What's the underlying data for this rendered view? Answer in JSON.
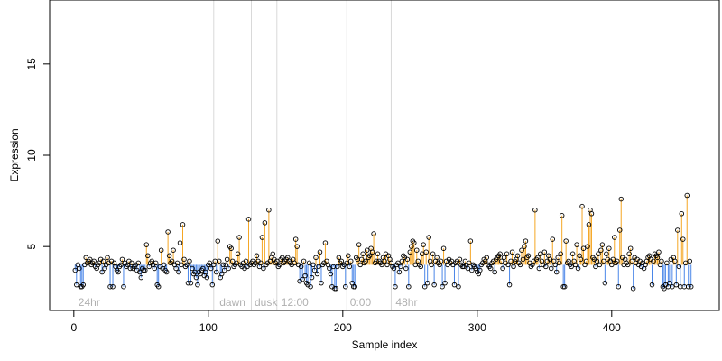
{
  "chart_data": {
    "type": "scatter",
    "title": "",
    "xlabel": "Sample index",
    "ylabel": "Expression",
    "xlim": [
      -18,
      480
    ],
    "ylim": [
      1.5,
      18.5
    ],
    "x_ticks": [
      0,
      100,
      200,
      300,
      400
    ],
    "y_ticks": [
      5,
      10,
      15
    ],
    "baseline": 4.0,
    "grid": false,
    "legend": "none",
    "colors": {
      "above": "#f5a623",
      "below": "#4a86e8",
      "point_edge": "#000000",
      "separator": "#d9d9d9",
      "condition_label": "#b0b0b0"
    },
    "condition_boundaries": [
      104,
      132,
      151,
      203,
      236
    ],
    "condition_labels": [
      {
        "text": "24hr",
        "x": 2
      },
      {
        "text": "dawn",
        "x": 107
      },
      {
        "text": "dusk",
        "x": 133
      },
      {
        "text": "12:00",
        "x": 153
      },
      {
        "text": "0:00",
        "x": 204
      },
      {
        "text": "48hr",
        "x": 238
      }
    ],
    "series": [
      {
        "x_start": 1,
        "values": [
          3.7,
          2.9,
          4.0,
          3.8,
          2.8,
          2.8,
          2.9,
          4.0,
          4.4,
          4.1,
          4.2,
          4.3,
          4.0,
          4.1,
          4.2,
          3.9,
          3.8,
          4.0,
          4.1,
          4.3,
          3.6,
          4.2,
          3.8,
          4.0,
          4.4,
          4.1,
          2.8,
          4.2,
          2.8,
          4.1,
          3.9,
          3.7,
          3.6,
          3.9,
          4.0,
          4.3,
          2.8,
          4.1,
          3.9,
          4.0,
          4.2,
          3.8,
          4.1,
          3.8,
          3.9,
          4.0,
          3.7,
          4.1,
          3.6,
          3.3,
          3.8,
          3.7,
          3.7,
          5.1,
          4.5,
          3.9,
          4.1,
          4.2,
          4.0,
          3.8,
          4.1,
          2.9,
          2.8,
          3.9,
          4.8,
          3.8,
          4.0,
          3.7,
          3.6,
          5.8,
          4.5,
          4.1,
          4.2,
          4.8,
          4.0,
          3.8,
          4.1,
          3.6,
          5.2,
          4.0,
          6.2,
          4.3,
          3.9,
          4.0,
          3.0,
          4.2,
          3.0,
          3.8,
          3.5,
          3.6,
          3.3,
          2.9,
          3.6,
          3.5,
          3.7,
          3.8,
          3.4,
          3.6,
          3.3,
          4.0,
          4.1,
          3.8,
          2.9,
          4.0,
          4.2,
          3.6,
          5.3,
          4.2,
          3.3,
          3.5,
          4.0,
          3.7,
          4.0,
          4.3,
          3.8,
          5.0,
          4.9,
          4.2,
          3.9,
          4.0,
          4.1,
          4.6,
          5.5,
          4.0,
          3.9,
          4.1,
          3.8,
          4.2,
          3.9,
          6.5,
          4.0,
          4.1,
          4.2,
          4.0,
          4.1,
          4.5,
          4.2,
          3.9,
          4.1,
          5.5,
          3.8,
          6.3,
          4.0,
          4.1,
          7.0,
          4.2,
          4.4,
          4.6,
          4.3,
          4.1,
          4.2,
          3.9,
          4.0,
          4.3,
          4.4,
          4.1,
          4.2,
          4.3,
          4.4,
          4.2,
          4.1,
          4.0,
          4.3,
          4.1,
          5.4,
          5.0,
          4.0,
          3.1,
          3.9,
          3.2,
          4.2,
          3.4,
          3.0,
          2.9,
          4.1,
          2.8,
          3.3,
          4.0,
          3.7,
          4.4,
          3.5,
          3.9,
          4.7,
          3.0,
          4.0,
          4.1,
          5.2,
          4.2,
          4.0,
          3.8,
          3.5,
          2.8,
          3.9,
          2.7,
          2.7,
          3.9,
          4.4,
          4.1,
          4.2,
          3.9,
          4.0,
          2.8,
          4.1,
          4.5,
          3.9,
          4.2,
          3.0,
          2.8,
          2.8,
          4.4,
          4.3,
          5.1,
          4.0,
          4.3,
          4.6,
          4.1,
          4.2,
          4.8,
          4.4,
          4.5,
          4.9,
          4.7,
          5.7,
          4.1,
          4.2,
          4.6,
          4.2,
          4.1,
          4.0,
          4.4,
          4.2,
          4.6,
          4.0,
          4.5,
          4.3,
          4.1,
          3.9,
          3.8,
          2.8,
          4.0,
          4.1,
          3.6,
          3.9,
          4.2,
          4.5,
          4.4,
          3.8,
          4.3,
          2.8,
          4.7,
          5.0,
          5.3,
          5.2,
          4.0,
          4.8,
          4.2,
          4.0,
          3.9,
          4.6,
          5.1,
          2.8,
          4.7,
          3.0,
          5.5,
          4.2,
          4.0,
          4.6,
          2.9,
          4.2,
          4.4,
          4.1,
          4.0,
          4.2,
          2.8,
          4.9,
          3.0,
          4.2,
          4.0,
          4.3,
          4.1,
          4.2,
          4.0,
          2.9,
          4.1,
          4.2,
          2.8,
          4.3,
          4.0,
          3.9,
          3.9,
          4.2,
          4.0,
          3.8,
          4.1,
          5.3,
          3.7,
          4.0,
          3.9,
          3.8,
          3.6,
          3.5,
          3.7,
          4.0,
          4.1,
          4.3,
          4.2,
          4.4,
          4.0,
          3.9,
          3.8,
          4.1,
          4.2,
          3.6,
          4.3,
          4.4,
          4.5,
          4.6,
          4.2,
          3.8,
          4.4,
          4.1,
          4.6,
          4.0,
          2.9,
          4.2,
          4.7,
          3.9,
          4.2,
          4.3,
          4.5,
          4.1,
          4.0,
          4.8,
          4.3,
          5.0,
          5.3,
          4.4,
          4.5,
          4.1,
          3.9,
          4.0,
          4.2,
          7.0,
          4.3,
          4.4,
          3.8,
          4.6,
          4.2,
          4.0,
          4.7,
          3.9,
          4.2,
          4.5,
          4.3,
          3.8,
          5.4,
          4.2,
          4.0,
          3.6,
          4.4,
          4.1,
          4.6,
          6.7,
          2.8,
          2.8,
          5.3,
          4.1,
          4.2,
          4.0,
          3.9,
          4.6,
          4.2,
          4.0,
          5.1,
          3.8,
          4.5,
          4.3,
          7.2,
          4.9,
          4.0,
          4.2,
          5.0,
          6.2,
          7.0,
          6.8,
          4.4,
          4.3,
          3.9,
          4.2,
          4.6,
          4.0,
          4.8,
          5.1,
          4.2,
          3.0,
          4.6,
          4.3,
          4.9,
          4.2,
          4.0,
          4.3,
          5.5,
          4.1,
          4.2,
          2.8,
          5.9,
          7.6,
          4.4,
          4.0,
          4.3,
          4.1,
          4.0,
          4.6,
          4.9,
          4.2,
          2.7,
          4.4,
          4.1,
          4.3,
          4.0,
          4.2,
          3.9,
          4.1,
          3.8,
          4.0,
          4.2,
          4.4,
          4.5,
          4.3,
          2.9,
          4.2,
          4.6,
          4.5,
          4.4,
          4.7,
          4.0,
          4.2,
          2.8,
          2.7,
          2.9,
          4.1,
          2.8,
          3.0,
          4.3,
          2.8,
          4.4,
          4.2,
          2.9,
          5.9,
          3.9,
          2.8,
          6.8,
          5.4,
          2.8,
          4.1,
          7.8,
          2.8,
          4.2,
          2.8
        ]
      }
    ]
  }
}
